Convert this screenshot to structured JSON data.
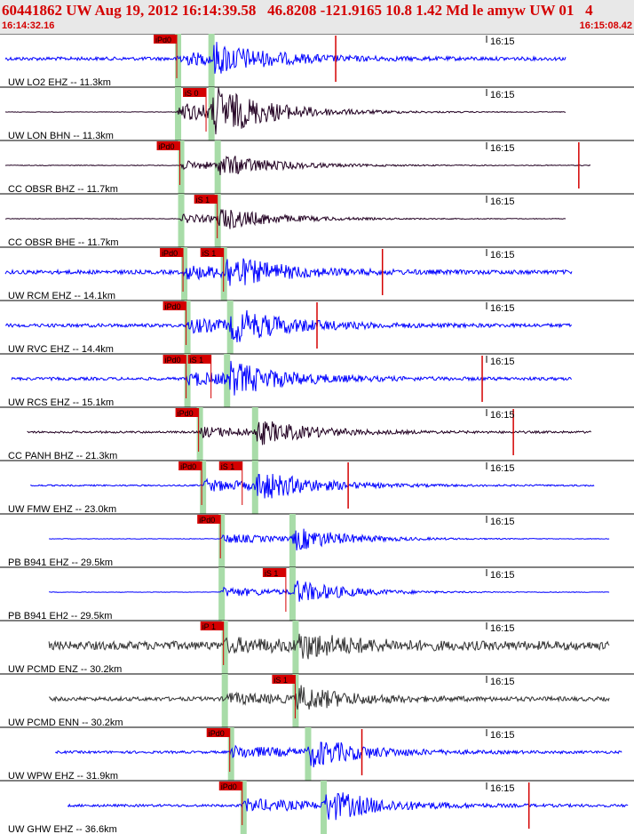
{
  "header": {
    "title": "60441862 UW Aug 19, 2012 16:14:39.58   46.8208 -121.9165 10.8 1.42 Md le amyw UW 01   4",
    "start_time": "16:14:32.16",
    "end_time": "16:15:08.42"
  },
  "time_marker_label": "16:15",
  "colors": {
    "accent": "#d40000",
    "blue": "#0000ff",
    "dark": "#220022",
    "gray": "#333333",
    "pick_band": "#a8dca8"
  },
  "traces": [
    {
      "label": "UW LO2 EHZ -- 11.3km",
      "color": "#0000ff",
      "start": 0.0,
      "end": 0.9,
      "p_arrival": 0.275,
      "s_arrival": 0.33,
      "amplitude": 0.55,
      "noise": 0.07,
      "picks": [
        {
          "text": "iPd0",
          "at": 0.275
        }
      ],
      "spike": 0.53
    },
    {
      "label": "UW LON BHN -- 11.3km",
      "color": "#220022",
      "start": 0.0,
      "end": 0.9,
      "p_arrival": 0.275,
      "s_arrival": 0.33,
      "amplitude": 0.9,
      "noise": 0.01,
      "picks": [
        {
          "text": "iS 0",
          "at": 0.322
        }
      ],
      "spike": null
    },
    {
      "label": "CC OBSR BHZ -- 11.7km",
      "color": "#220022",
      "start": 0.0,
      "end": 0.94,
      "p_arrival": 0.28,
      "s_arrival": 0.34,
      "amplitude": 0.4,
      "noise": 0.015,
      "picks": [
        {
          "text": "iPd0",
          "at": 0.28
        }
      ],
      "spike": 0.92
    },
    {
      "label": "CC OBSR BHE -- 11.7km",
      "color": "#220022",
      "start": 0.0,
      "end": 0.9,
      "p_arrival": 0.28,
      "s_arrival": 0.34,
      "amplitude": 0.4,
      "noise": 0.012,
      "picks": [
        {
          "text": "iS 1",
          "at": 0.34
        }
      ],
      "spike": null
    },
    {
      "label": "UW RCM EHZ -- 14.1km",
      "color": "#0000ff",
      "start": 0.0,
      "end": 0.91,
      "p_arrival": 0.285,
      "s_arrival": 0.35,
      "amplitude": 0.55,
      "noise": 0.08,
      "picks": [
        {
          "text": "iPd0",
          "at": 0.285
        },
        {
          "text": "iS 1",
          "at": 0.35
        }
      ],
      "spike": 0.605
    },
    {
      "label": "UW RVC EHZ -- 14.4km",
      "color": "#0000ff",
      "start": 0.0,
      "end": 0.91,
      "p_arrival": 0.29,
      "s_arrival": 0.36,
      "amplitude": 0.6,
      "noise": 0.07,
      "picks": [
        {
          "text": "iPd0",
          "at": 0.29
        }
      ],
      "spike": 0.5
    },
    {
      "label": "UW RCS EHZ -- 15.1km",
      "color": "#0000ff",
      "start": 0.01,
      "end": 0.91,
      "p_arrival": 0.29,
      "s_arrival": 0.355,
      "amplitude": 0.6,
      "noise": 0.06,
      "picks": [
        {
          "text": "iPd0",
          "at": 0.29
        },
        {
          "text": "iS 1",
          "at": 0.33
        }
      ],
      "spike": 0.765
    },
    {
      "label": "CC PANH BHZ -- 21.3km",
      "color": "#220022",
      "start": 0.035,
      "end": 0.94,
      "p_arrival": 0.31,
      "s_arrival": 0.4,
      "amplitude": 0.45,
      "noise": 0.04,
      "picks": [
        {
          "text": "iPd0",
          "at": 0.31
        }
      ],
      "spike": 0.815
    },
    {
      "label": "UW FMW EHZ -- 23.0km",
      "color": "#0000ff",
      "start": 0.04,
      "end": 0.945,
      "p_arrival": 0.315,
      "s_arrival": 0.4,
      "amplitude": 0.55,
      "noise": 0.03,
      "picks": [
        {
          "text": "iPd0",
          "at": 0.315
        },
        {
          "text": "iS 1",
          "at": 0.38
        }
      ],
      "spike": 0.55
    },
    {
      "label": "PB B941 EHZ -- 29.5km",
      "color": "#0000ff",
      "start": 0.07,
      "end": 0.97,
      "p_arrival": 0.345,
      "s_arrival": 0.46,
      "amplitude": 0.45,
      "noise": 0.01,
      "picks": [
        {
          "text": "iPd0",
          "at": 0.345
        }
      ],
      "spike": null
    },
    {
      "label": "PB B941 EH2 -- 29.5km",
      "color": "#0000ff",
      "start": 0.07,
      "end": 0.97,
      "p_arrival": 0.345,
      "s_arrival": 0.46,
      "amplitude": 0.45,
      "noise": 0.01,
      "picks": [
        {
          "text": "iS 1",
          "at": 0.45
        }
      ],
      "spike": null
    },
    {
      "label": "UW PCMD ENZ -- 30.2km",
      "color": "#333333",
      "start": 0.07,
      "end": 0.97,
      "p_arrival": 0.35,
      "s_arrival": 0.465,
      "amplitude": 0.45,
      "noise": 0.17,
      "picks": [
        {
          "text": "iP 1",
          "at": 0.35
        }
      ],
      "spike": null
    },
    {
      "label": "UW PCMD ENN -- 30.2km",
      "color": "#333333",
      "start": 0.07,
      "end": 0.97,
      "p_arrival": 0.35,
      "s_arrival": 0.465,
      "amplitude": 0.45,
      "noise": 0.08,
      "picks": [
        {
          "text": "iS 1",
          "at": 0.465
        }
      ],
      "spike": null
    },
    {
      "label": "UW WPW EHZ -- 31.9km",
      "color": "#0000ff",
      "start": 0.08,
      "end": 0.99,
      "p_arrival": 0.36,
      "s_arrival": 0.485,
      "amplitude": 0.55,
      "noise": 0.05,
      "picks": [
        {
          "text": "iPd0",
          "at": 0.36
        }
      ],
      "spike": 0.572
    },
    {
      "label": "UW GHW EHZ -- 36.6km",
      "color": "#0000ff",
      "start": 0.1,
      "end": 1.0,
      "p_arrival": 0.38,
      "s_arrival": 0.51,
      "amplitude": 0.6,
      "noise": 0.05,
      "picks": [
        {
          "text": "iPd0",
          "at": 0.38
        }
      ],
      "spike": 0.84
    }
  ]
}
